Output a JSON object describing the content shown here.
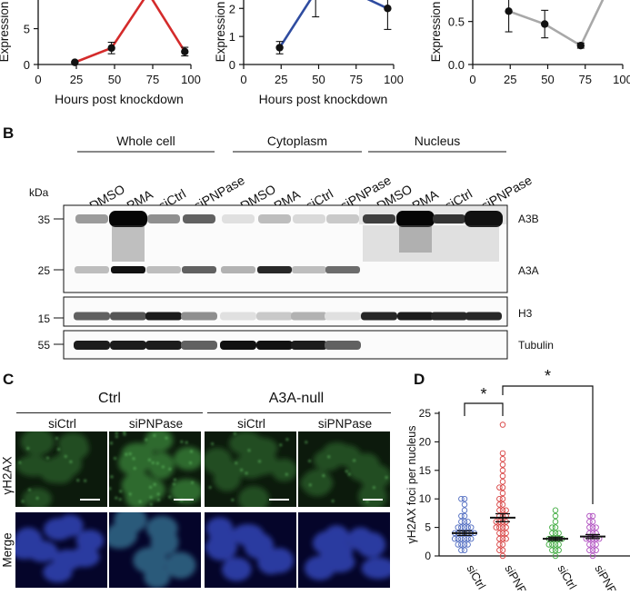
{
  "panel_a": {
    "chart_data": [
      {
        "type": "line",
        "xlabel": "Hours post knockdown",
        "ylabel": "Expression",
        "xticks": [
          "0",
          "25",
          "50",
          "75",
          "100"
        ],
        "yticks": [
          "0",
          "5"
        ],
        "xlim": [
          0,
          100
        ],
        "ylim": [
          0,
          9
        ],
        "color": "#d42b2b",
        "points": [
          {
            "x": 24,
            "y": 0.3,
            "err": 0.1
          },
          {
            "x": 48,
            "y": 2.3,
            "err": 0.8
          },
          {
            "x": 72,
            "y": 10.0,
            "err": 0
          },
          {
            "x": 96,
            "y": 1.8,
            "err": 0.6
          }
        ]
      },
      {
        "type": "line",
        "xlabel": "Hours post knockdown",
        "ylabel": "Expression",
        "xticks": [
          "0",
          "25",
          "50",
          "75",
          "100"
        ],
        "yticks": [
          "0",
          "1",
          "2"
        ],
        "xlim": [
          0,
          100
        ],
        "ylim": [
          0,
          2.3
        ],
        "color": "#2f4ca0",
        "points": [
          {
            "x": 24,
            "y": 0.6,
            "err": 0.22
          },
          {
            "x": 48,
            "y": 2.6,
            "err": 0.9
          },
          {
            "x": 72,
            "y": 2.6,
            "err": 0
          },
          {
            "x": 96,
            "y": 2.0,
            "err": 0.75
          }
        ]
      },
      {
        "type": "line",
        "xlabel": "",
        "ylabel": "Expression",
        "xticks": [
          "0",
          "25",
          "50",
          "75",
          "100"
        ],
        "yticks": [
          "0.0",
          "0.5"
        ],
        "xlim": [
          0,
          100
        ],
        "ylim": [
          0,
          0.75
        ],
        "color": "#a8a8a8",
        "points": [
          {
            "x": 24,
            "y": 0.62,
            "err": 0.24
          },
          {
            "x": 48,
            "y": 0.47,
            "err": 0.16
          },
          {
            "x": 72,
            "y": 0.22,
            "err": 0.03
          },
          {
            "x": 88,
            "y": 0.8,
            "err": 0
          }
        ]
      }
    ]
  },
  "panel_b": {
    "letter": "B",
    "groups": [
      "Whole cell",
      "Cytoplasm",
      "Nucleus"
    ],
    "lanes": [
      "DMSO",
      "PMA",
      "siCtrl",
      "siPNPase",
      "DMSO",
      "PMA",
      "siCtrl",
      "siPNPase",
      "DMSO",
      "PMA",
      "siCtrl",
      "siPNPase"
    ],
    "kda_label": "kDa",
    "markers": [
      "35",
      "25",
      "15",
      "55"
    ],
    "band_labels": [
      "A3B",
      "A3A",
      "H3",
      "Tubulin"
    ],
    "a3b_intensity": [
      0.35,
      1.0,
      0.4,
      0.6,
      0.05,
      0.2,
      0.08,
      0.15,
      0.75,
      1.0,
      0.8,
      0.95
    ],
    "a3a_intensity": [
      0.2,
      0.95,
      0.2,
      0.6,
      0.25,
      0.85,
      0.2,
      0.55,
      0.0,
      0.0,
      0.0,
      0.0
    ],
    "h3_intensity": [
      0.6,
      0.65,
      0.9,
      0.4,
      0.05,
      0.15,
      0.25,
      0.05,
      0.85,
      0.9,
      0.85,
      0.85
    ],
    "tubulin_intensity": [
      0.9,
      0.9,
      0.9,
      0.6,
      0.95,
      0.95,
      0.9,
      0.6,
      0.0,
      0.0,
      0.0,
      0.0
    ]
  },
  "panel_c": {
    "letter": "C",
    "groups": [
      "Ctrl",
      "A3A-null"
    ],
    "columns": [
      "siCtrl",
      "siPNPase",
      "siCtrl",
      "siPNPase"
    ],
    "rows": [
      "γH2AX",
      "Merge"
    ]
  },
  "panel_d": {
    "letter": "D",
    "chart_data": {
      "type": "scatter",
      "ylabel": "γH2AX foci per nucleus",
      "yticks": [
        "0",
        "5",
        "10",
        "15",
        "20",
        "25"
      ],
      "ylim": [
        0,
        25
      ],
      "categories": [
        "siCtrl",
        "siPNPase",
        "siCtrl",
        "siPNPase"
      ],
      "category_labels_visible": [
        "siCtrl",
        "siPNP",
        "siCtrl",
        "siPNP"
      ],
      "colors": [
        "#4f6bc0",
        "#d84040",
        "#3daa3d",
        "#b050c0"
      ],
      "means": [
        4.0,
        6.7,
        3.0,
        3.4
      ],
      "sems": [
        0.4,
        0.7,
        0.3,
        0.35
      ],
      "values": [
        [
          1,
          1,
          2,
          2,
          2,
          2,
          3,
          3,
          3,
          3,
          3,
          3,
          4,
          4,
          4,
          4,
          4,
          4,
          4,
          5,
          5,
          5,
          5,
          5,
          6,
          6,
          6,
          7,
          7,
          8,
          9,
          10,
          10
        ],
        [
          0,
          1,
          1,
          2,
          2,
          3,
          3,
          3,
          4,
          4,
          4,
          5,
          5,
          5,
          5,
          6,
          6,
          6,
          6,
          7,
          7,
          7,
          8,
          8,
          8,
          9,
          9,
          10,
          10,
          11,
          12,
          12,
          13,
          14,
          15,
          16,
          17,
          18,
          23
        ],
        [
          0,
          1,
          1,
          1,
          2,
          2,
          2,
          2,
          3,
          3,
          3,
          3,
          3,
          4,
          4,
          4,
          5,
          5,
          6,
          7,
          8
        ],
        [
          0,
          1,
          1,
          1,
          2,
          2,
          2,
          3,
          3,
          3,
          3,
          3,
          4,
          4,
          4,
          5,
          5,
          5,
          6,
          6,
          7,
          7
        ]
      ],
      "significance": [
        "*",
        "*"
      ]
    }
  }
}
